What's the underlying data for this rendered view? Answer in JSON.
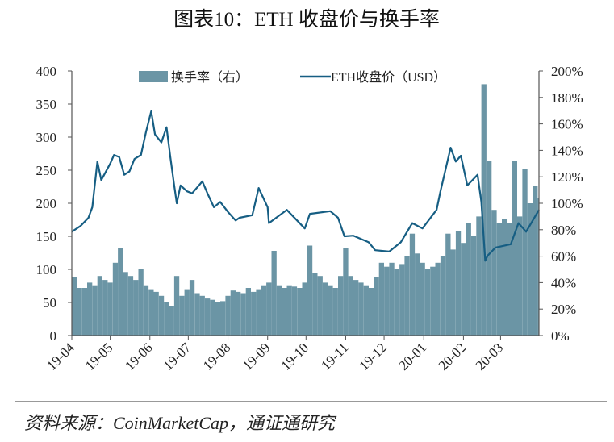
{
  "title": "图表10：ETH 收盘价与换手率",
  "source": "资料来源：CoinMarketCap，通证通研究",
  "colors": {
    "bars": "#6b95a5",
    "line": "#165e83",
    "axis": "#555555"
  },
  "chart_data": {
    "type": "bar+line",
    "legend_position": "top",
    "grid": false,
    "x_ticks": [
      "19-04",
      "19-05",
      "19-06",
      "19-07",
      "19-08",
      "19-09",
      "19-10",
      "19-11",
      "19-12",
      "20-01",
      "20-02",
      "20-03"
    ],
    "y_left": {
      "ticks": [
        "0",
        "50",
        "100",
        "150",
        "200",
        "250",
        "300",
        "350",
        "400"
      ],
      "range": [
        0,
        400
      ]
    },
    "y_right": {
      "ticks": [
        "0%",
        "20%",
        "40%",
        "60%",
        "80%",
        "100%",
        "120%",
        "140%",
        "160%",
        "180%",
        "200%"
      ],
      "range": [
        0,
        200
      ]
    },
    "series": [
      {
        "name": "换手率（右）",
        "type": "bar",
        "axis": "right",
        "dates": [
          "2019-04-01",
          "2019-04-05",
          "2019-04-09",
          "2019-04-13",
          "2019-04-17",
          "2019-04-21",
          "2019-04-25",
          "2019-04-29",
          "2019-05-03",
          "2019-05-07",
          "2019-05-11",
          "2019-05-15",
          "2019-05-19",
          "2019-05-23",
          "2019-05-27",
          "2019-05-31",
          "2019-06-04",
          "2019-06-08",
          "2019-06-12",
          "2019-06-16",
          "2019-06-20",
          "2019-06-24",
          "2019-06-28",
          "2019-07-02",
          "2019-07-06",
          "2019-07-10",
          "2019-07-14",
          "2019-07-18",
          "2019-07-22",
          "2019-07-26",
          "2019-07-30",
          "2019-08-03",
          "2019-08-07",
          "2019-08-11",
          "2019-08-15",
          "2019-08-19",
          "2019-08-23",
          "2019-08-27",
          "2019-08-31",
          "2019-09-04",
          "2019-09-08",
          "2019-09-12",
          "2019-09-16",
          "2019-09-20",
          "2019-09-24",
          "2019-09-28",
          "2019-10-02",
          "2019-10-06",
          "2019-10-10",
          "2019-10-14",
          "2019-10-18",
          "2019-10-22",
          "2019-10-26",
          "2019-10-30",
          "2019-11-03",
          "2019-11-07",
          "2019-11-11",
          "2019-11-15",
          "2019-11-19",
          "2019-11-23",
          "2019-11-27",
          "2019-12-01",
          "2019-12-05",
          "2019-12-09",
          "2019-12-13",
          "2019-12-17",
          "2019-12-21",
          "2019-12-25",
          "2019-12-29",
          "2020-01-02",
          "2020-01-06",
          "2020-01-10",
          "2020-01-14",
          "2020-01-18",
          "2020-01-22",
          "2020-01-26",
          "2020-01-30",
          "2020-02-03",
          "2020-02-07",
          "2020-02-11",
          "2020-02-15",
          "2020-02-19",
          "2020-02-23",
          "2020-02-27",
          "2020-03-02",
          "2020-03-06",
          "2020-03-10",
          "2020-03-14",
          "2020-03-18",
          "2020-03-22",
          "2020-03-26",
          "2020-03-30"
        ],
        "values": [
          44,
          36,
          36,
          40,
          38,
          45,
          42,
          40,
          55,
          66,
          48,
          45,
          42,
          50,
          38,
          35,
          33,
          30,
          25,
          22,
          45,
          30,
          35,
          42,
          32,
          30,
          28,
          27,
          25,
          26,
          30,
          34,
          33,
          32,
          36,
          33,
          35,
          38,
          40,
          64,
          38,
          36,
          38,
          37,
          36,
          40,
          68,
          47,
          45,
          40,
          38,
          36,
          45,
          66,
          45,
          42,
          40,
          38,
          36,
          44,
          55,
          52,
          55,
          50,
          54,
          60,
          77,
          62,
          55,
          50,
          52,
          55,
          60,
          77,
          65,
          79,
          70,
          85,
          75,
          90,
          190,
          132,
          95,
          85,
          88,
          85,
          132,
          90,
          126,
          100,
          113,
          104
        ]
      },
      {
        "name": "ETH收盘价（USD）",
        "type": "line",
        "axis": "left",
        "dates": [
          "2019-04-01",
          "2019-04-08",
          "2019-04-14",
          "2019-04-17",
          "2019-04-21",
          "2019-04-24",
          "2019-05-01",
          "2019-05-04",
          "2019-05-08",
          "2019-05-12",
          "2019-05-16",
          "2019-05-20",
          "2019-05-25",
          "2019-05-29",
          "2019-06-02",
          "2019-06-05",
          "2019-06-10",
          "2019-06-14",
          "2019-06-17",
          "2019-06-20",
          "2019-06-22",
          "2019-06-25",
          "2019-06-30",
          "2019-07-04",
          "2019-07-12",
          "2019-07-16",
          "2019-07-21",
          "2019-07-26",
          "2019-08-01",
          "2019-08-07",
          "2019-08-10",
          "2019-08-20",
          "2019-08-25",
          "2019-09-01",
          "2019-09-02",
          "2019-09-16",
          "2019-09-30",
          "2019-10-04",
          "2019-10-20",
          "2019-10-26",
          "2019-10-31",
          "2019-11-07",
          "2019-11-19",
          "2019-11-24",
          "2019-12-05",
          "2019-12-14",
          "2019-12-23",
          "2019-12-31",
          "2020-01-11",
          "2020-01-14",
          "2020-01-22",
          "2020-01-26",
          "2020-01-30",
          "2020-02-04",
          "2020-02-12",
          "2020-02-15",
          "2020-02-18",
          "2020-02-20",
          "2020-02-26",
          "2020-03-09",
          "2020-03-15",
          "2020-03-21",
          "2020-03-31"
        ],
        "values": [
          157,
          166,
          178,
          194,
          263,
          235,
          260,
          273,
          270,
          243,
          248,
          267,
          273,
          308,
          339,
          304,
          292,
          315,
          270,
          227,
          200,
          227,
          218,
          215,
          233,
          215,
          194,
          202,
          187,
          174,
          178,
          182,
          223,
          194,
          170,
          190,
          162,
          184,
          188,
          178,
          150,
          151,
          141,
          129,
          127,
          141,
          170,
          162,
          190,
          218,
          284,
          263,
          272,
          227,
          243,
          202,
          113,
          121,
          133,
          138,
          170,
          157,
          190
        ]
      }
    ]
  }
}
